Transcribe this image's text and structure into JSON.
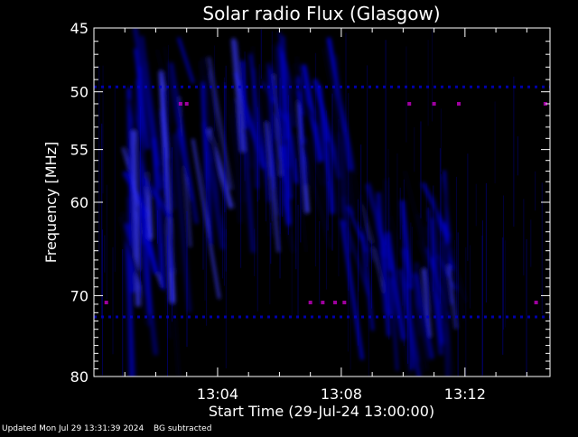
{
  "chart_data": {
    "type": "heatmap",
    "title": "Solar radio Flux (Glasgow)",
    "xlabel": "Start Time (29-Jul-24 13:00:00)",
    "ylabel": "Frequency [MHz]",
    "xlim_minutes": [
      0.0,
      14.75
    ],
    "ylim": [
      45,
      80
    ],
    "y_scale": "log",
    "y_ticks": [
      45,
      50,
      55,
      60,
      70,
      80
    ],
    "x_ticks": [
      {
        "minutes": 4,
        "label": "13:04"
      },
      {
        "minutes": 8,
        "label": "13:08"
      },
      {
        "minutes": 12,
        "label": "13:12"
      }
    ],
    "colors": {
      "background": "#000000",
      "low": "#050520",
      "mid": "#0000c8",
      "high": "#3a3aff",
      "hot": "#c800c8",
      "axes": "#ffffff"
    },
    "features": [
      {
        "kind": "band",
        "freq_mhz": 49.6,
        "note": "horizontal dotted interference line"
      },
      {
        "kind": "band",
        "freq_mhz": 72.5,
        "note": "horizontal interference line"
      },
      {
        "kind": "burst",
        "start_minutes": 0.8,
        "end_minutes": 3.5,
        "freq_range_mhz": [
          45,
          80
        ]
      },
      {
        "kind": "burst",
        "start_minutes": 3.5,
        "end_minutes": 8.0,
        "freq_range_mhz": [
          45,
          65
        ]
      },
      {
        "kind": "burst",
        "start_minutes": 8.0,
        "end_minutes": 11.5,
        "freq_range_mhz": [
          57,
          80
        ]
      }
    ]
  },
  "footer": {
    "updated": "Updated Mon Jul 29 13:31:39 2024",
    "note": "BG subtracted"
  }
}
